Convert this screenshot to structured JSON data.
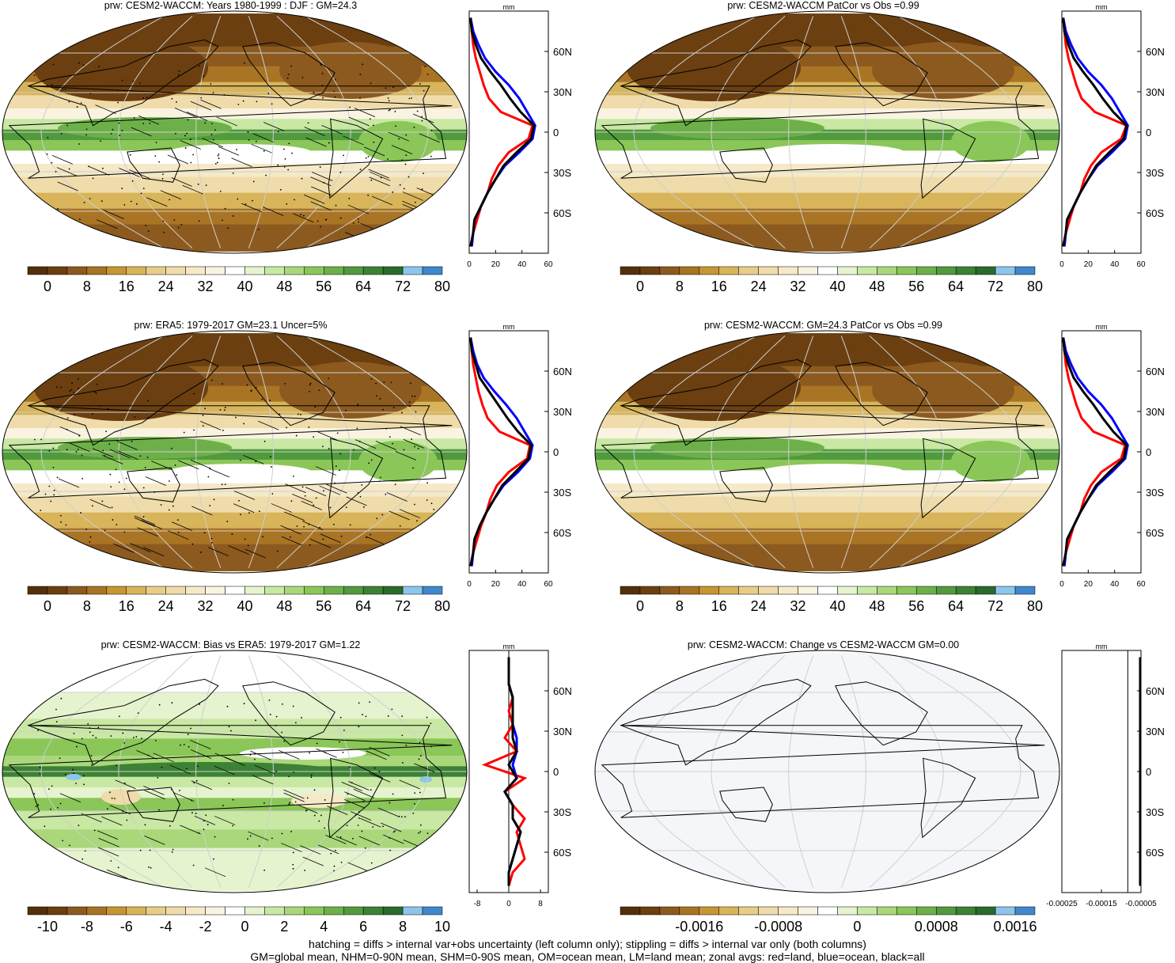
{
  "panels": [
    {
      "title": "prw: CESM2-WACCM: Years 1980-1999 : DJF : GM=24.3",
      "kind": "mean",
      "seed": 1,
      "hatch": true
    },
    {
      "title": "prw: CESM2-WACCM PatCor vs Obs =0.99",
      "kind": "mean",
      "seed": 2,
      "hatch": false
    },
    {
      "title": "prw: ERA5: 1979-2017 GM=23.1 Uncer=5%",
      "kind": "mean",
      "seed": 3,
      "hatch": true
    },
    {
      "title": "prw: CESM2-WACCM: GM=24.3 PatCor vs Obs =0.99",
      "kind": "mean",
      "seed": 4,
      "hatch": false
    },
    {
      "title": "prw: CESM2-WACCM: Bias vs ERA5: 1979-2017 GM=1.22",
      "kind": "bias",
      "seed": 5,
      "hatch": true
    },
    {
      "title": "prw: CESM2-WACCM: Change vs CESM2-WACCM GM=0.00",
      "kind": "change",
      "seed": 6,
      "hatch": false
    }
  ],
  "colorbars": {
    "mean": {
      "colors": [
        "#54300a",
        "#6b3f10",
        "#8c5a1e",
        "#a97424",
        "#c69632",
        "#d8b45a",
        "#e7cd88",
        "#efdcaa",
        "#f5e9c8",
        "#faf3e1",
        "#ffffff",
        "#e6f3cf",
        "#c8e8a3",
        "#a9d77a",
        "#8ac658",
        "#6db04a",
        "#519a3d",
        "#3c8234",
        "#2a6b2c",
        "#8cc6ec",
        "#3f88cc"
      ],
      "labels": [
        "0",
        "8",
        "16",
        "24",
        "32",
        "40",
        "48",
        "56",
        "64",
        "72",
        "80"
      ]
    },
    "bias": {
      "colors": [
        "#54300a",
        "#6b3f10",
        "#8c5a1e",
        "#a97424",
        "#c69632",
        "#d8b45a",
        "#e7cd88",
        "#efdcaa",
        "#f5e9c8",
        "#faf3e1",
        "#ffffff",
        "#e6f3cf",
        "#c8e8a3",
        "#a9d77a",
        "#8ac658",
        "#6db04a",
        "#519a3d",
        "#3c8234",
        "#2a6b2c",
        "#8cc6ec",
        "#3f88cc"
      ],
      "labels": [
        "-10",
        "-8",
        "-6",
        "-4",
        "-2",
        "0",
        "2",
        "4",
        "6",
        "8",
        "10"
      ]
    },
    "change": {
      "colors": [
        "#54300a",
        "#6b3f10",
        "#8c5a1e",
        "#a97424",
        "#c69632",
        "#d8b45a",
        "#e7cd88",
        "#efdcaa",
        "#f5e9c8",
        "#faf3e1",
        "#ffffff",
        "#e6f3cf",
        "#c8e8a3",
        "#a9d77a",
        "#8ac658",
        "#6db04a",
        "#519a3d",
        "#3c8234",
        "#2a6b2c",
        "#8cc6ec",
        "#3f88cc"
      ],
      "labels": [
        "-0.0016",
        "-0.0008",
        "0",
        "0.0008",
        "0.0016"
      ]
    }
  },
  "chart_data": [
    {
      "type": "line",
      "title": "",
      "xlabel": "mm",
      "ylabel": "",
      "xlim": [
        0,
        60
      ],
      "xticks": [
        "0",
        "20",
        "40",
        "60"
      ],
      "ylim": [
        -90,
        90
      ],
      "yticks": [
        "60N",
        "30N",
        "0",
        "30S",
        "60S"
      ],
      "series_colors": {
        "land": "#ff0000",
        "ocean": "#0000ff",
        "all": "#000000"
      },
      "lat": [
        -85,
        -75,
        -65,
        -55,
        -45,
        -35,
        -25,
        -15,
        -5,
        5,
        15,
        25,
        35,
        45,
        55,
        65,
        75,
        85
      ],
      "land": [
        1,
        3,
        6,
        9,
        14,
        17,
        22,
        30,
        45,
        48,
        24,
        15,
        11,
        8,
        5,
        3,
        2,
        1
      ],
      "ocean": [
        2,
        3,
        4,
        9,
        14,
        20,
        27,
        38,
        48,
        50,
        44,
        38,
        30,
        20,
        12,
        7,
        3,
        1
      ],
      "all": [
        1,
        3,
        4,
        9,
        14,
        20,
        26,
        36,
        47,
        49,
        39,
        31,
        24,
        16,
        9,
        5,
        2,
        1
      ]
    },
    {
      "type": "line",
      "title": "",
      "xlabel": "mm",
      "ylabel": "",
      "xlim": [
        0,
        60
      ],
      "xticks": [
        "0",
        "20",
        "40",
        "60"
      ],
      "ylim": [
        -90,
        90
      ],
      "yticks": [
        "60N",
        "30N",
        "0",
        "30S",
        "60S"
      ],
      "series_colors": {
        "land": "#ff0000",
        "ocean": "#0000ff",
        "all": "#000000"
      },
      "lat": [
        -85,
        -75,
        -65,
        -55,
        -45,
        -35,
        -25,
        -15,
        -5,
        5,
        15,
        25,
        35,
        45,
        55,
        65,
        75,
        85
      ],
      "land": [
        1,
        3,
        6,
        9,
        14,
        17,
        22,
        30,
        45,
        49,
        25,
        15,
        11,
        8,
        5,
        3,
        2,
        1
      ],
      "ocean": [
        2,
        3,
        4,
        9,
        14,
        20,
        27,
        38,
        48,
        50,
        44,
        38,
        30,
        20,
        12,
        7,
        3,
        1
      ],
      "all": [
        1,
        3,
        4,
        9,
        14,
        20,
        26,
        36,
        47,
        49,
        39,
        31,
        24,
        16,
        9,
        5,
        2,
        1
      ]
    },
    {
      "type": "line",
      "title": "",
      "xlabel": "mm",
      "ylabel": "",
      "xlim": [
        0,
        60
      ],
      "xticks": [
        "0",
        "20",
        "40",
        "60"
      ],
      "ylim": [
        -90,
        90
      ],
      "yticks": [
        "60N",
        "30N",
        "0",
        "30S",
        "60S"
      ],
      "series_colors": {
        "land": "#ff0000",
        "ocean": "#0000ff",
        "all": "#000000"
      },
      "lat": [
        -85,
        -75,
        -65,
        -55,
        -45,
        -35,
        -25,
        -15,
        -5,
        5,
        15,
        25,
        35,
        45,
        55,
        65,
        75,
        85
      ],
      "land": [
        1,
        3,
        6,
        9,
        13,
        16,
        21,
        30,
        44,
        46,
        23,
        14,
        10,
        7,
        5,
        3,
        2,
        1
      ],
      "ocean": [
        2,
        3,
        4,
        8,
        13,
        19,
        26,
        37,
        46,
        48,
        42,
        36,
        28,
        19,
        11,
        6,
        3,
        1
      ],
      "all": [
        1,
        3,
        4,
        8,
        13,
        19,
        25,
        35,
        45,
        47,
        37,
        29,
        22,
        15,
        8,
        5,
        2,
        1
      ]
    },
    {
      "type": "line",
      "title": "",
      "xlabel": "mm",
      "ylabel": "",
      "xlim": [
        0,
        60
      ],
      "xticks": [
        "0",
        "20",
        "40",
        "60"
      ],
      "ylim": [
        -90,
        90
      ],
      "yticks": [
        "60N",
        "30N",
        "0",
        "30S",
        "60S"
      ],
      "series_colors": {
        "land": "#ff0000",
        "ocean": "#0000ff",
        "all": "#000000"
      },
      "lat": [
        -85,
        -75,
        -65,
        -55,
        -45,
        -35,
        -25,
        -15,
        -5,
        5,
        15,
        25,
        35,
        45,
        55,
        65,
        75,
        85
      ],
      "land": [
        1,
        3,
        6,
        9,
        14,
        17,
        22,
        30,
        45,
        48,
        24,
        15,
        11,
        8,
        5,
        3,
        2,
        1
      ],
      "ocean": [
        2,
        3,
        4,
        9,
        14,
        20,
        27,
        38,
        48,
        50,
        44,
        38,
        30,
        20,
        12,
        7,
        3,
        1
      ],
      "all": [
        1,
        3,
        4,
        9,
        14,
        20,
        26,
        36,
        47,
        49,
        39,
        31,
        24,
        16,
        9,
        5,
        2,
        1
      ]
    },
    {
      "type": "line",
      "title": "",
      "xlabel": "mm",
      "ylabel": "",
      "xlim": [
        -10,
        10
      ],
      "xticks": [
        "-8",
        "0",
        "8"
      ],
      "ylim": [
        -90,
        90
      ],
      "yticks": [
        "60N",
        "30N",
        "0",
        "30S",
        "60S"
      ],
      "series_colors": {
        "land": "#ff0000",
        "ocean": "#0000ff",
        "all": "#000000"
      },
      "lat": [
        -85,
        -75,
        -65,
        -55,
        -45,
        -35,
        -25,
        -15,
        -5,
        5,
        15,
        25,
        35,
        45,
        55,
        65,
        75,
        85
      ],
      "land": [
        0,
        1,
        4,
        3,
        2,
        4,
        1,
        -1,
        4,
        -6,
        2,
        -1,
        1,
        0,
        1,
        0,
        0,
        0
      ],
      "ocean": [
        0,
        0,
        1,
        2,
        3,
        1,
        1,
        -1,
        2,
        1,
        2,
        2,
        1,
        1,
        1,
        0,
        0,
        0
      ],
      "all": [
        0,
        0,
        1,
        2,
        3,
        1,
        1,
        -1,
        2,
        0,
        2,
        1,
        1,
        1,
        1,
        0,
        0,
        0
      ]
    },
    {
      "type": "line",
      "title": "",
      "xlabel": "mm",
      "ylabel": "",
      "xlim": [
        -0.00025,
        5e-05
      ],
      "xticks": [
        "-0.00025",
        "-0.00015",
        "-0.00005"
      ],
      "ylim": [
        -90,
        90
      ],
      "yticks": [
        "60N",
        "30N",
        "0",
        "30S",
        "60S"
      ],
      "series_colors": {
        "land": "#ff0000",
        "ocean": "#0000ff",
        "all": "#000000"
      },
      "lat": [
        -85,
        -75,
        -65,
        -55,
        -45,
        -35,
        -25,
        -15,
        -5,
        5,
        15,
        25,
        35,
        45,
        55,
        65,
        75,
        85
      ],
      "land": [
        0,
        0,
        0,
        0,
        0,
        0,
        0,
        0,
        0,
        0,
        0,
        0,
        0,
        0,
        0,
        0,
        0,
        0
      ],
      "ocean": [
        0,
        0,
        0,
        0,
        0,
        0,
        0,
        0,
        0,
        0,
        0,
        0,
        0,
        0,
        0,
        0,
        0,
        0
      ],
      "all": [
        0,
        0,
        0,
        0,
        0,
        0,
        0,
        0,
        0,
        0,
        0,
        0,
        0,
        0,
        0,
        0,
        0,
        0
      ]
    }
  ],
  "footnotes": {
    "line1": "hatching = diffs > internal var+obs uncertainty (left column only); stippling = diffs > internal var only (both columns)",
    "line2": "GM=global mean, NHM=0-90N mean, SHM=0-90S mean, OM=ocean mean, LM=land mean; zonal avgs: red=land, blue=ocean, black=all"
  }
}
